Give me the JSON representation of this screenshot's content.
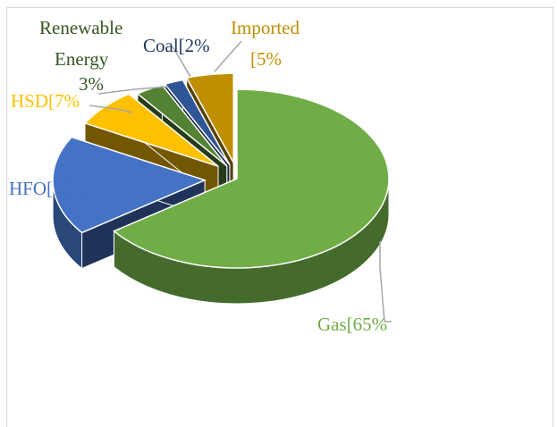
{
  "chart_data": {
    "type": "pie",
    "style": "3d-exploded",
    "title": "",
    "slices": [
      {
        "label": "Gas[65%",
        "value": 65,
        "color": "#70AD47"
      },
      {
        "label": "HFO[18%",
        "value": 18,
        "color": "#4472C4"
      },
      {
        "label": "HSD[7%",
        "value": 7,
        "color": "#FFC000"
      },
      {
        "label": "Renewable Energy 3%",
        "value": 3,
        "color": "#548235"
      },
      {
        "label": "Coal[2%",
        "value": 2,
        "color": "#2F5597"
      },
      {
        "label": "Imported [5%",
        "value": 5,
        "color": "#BF8F00"
      }
    ],
    "label_colors": {
      "Gas": "#70AD47",
      "HFO": "#4472C4",
      "HSD": "#FFC000",
      "Renewable": "#375623",
      "Coal": "#1F3864",
      "Imported": "#BF8F00"
    },
    "text": {
      "gas": "Gas[65%",
      "hfo": "HFO[18%",
      "hsd": "HSD[7%",
      "renewable_line1": "Renewable",
      "renewable_line2": "Energy",
      "renewable_line3": "3%",
      "coal": "Coal[2%",
      "imported_line1": "Imported",
      "imported_line2": "[5%"
    }
  }
}
